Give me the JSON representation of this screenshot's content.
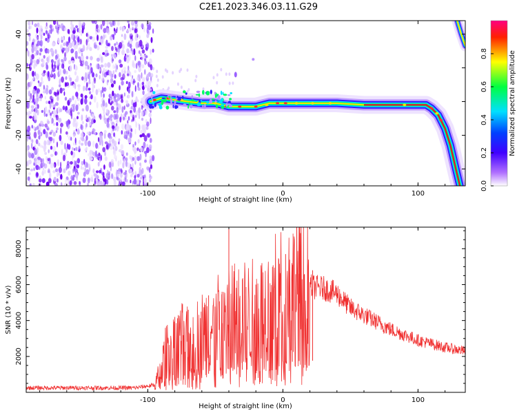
{
  "title": "C2E1.2023.346.03.11.G29",
  "chart_data": [
    {
      "type": "heatmap",
      "xlabel": "Height of straight line (km)",
      "ylabel": "Frequency (Hz)",
      "xlim": [
        -190,
        135
      ],
      "ylim": [
        -50,
        48
      ],
      "x_ticks": [
        -100,
        0,
        100
      ],
      "y_ticks": [
        -40,
        -20,
        0,
        20,
        40
      ],
      "x_tick_labels": [
        "-100",
        "0",
        "100"
      ],
      "y_tick_labels": [
        "-40",
        "-20",
        "0",
        "20",
        "40"
      ],
      "colorbar": {
        "label": "Normalized spectral amplitude",
        "range": [
          0,
          1
        ],
        "ticks": [
          0.0,
          0.2,
          0.4,
          0.6,
          0.8
        ],
        "tick_labels": [
          "0.0",
          "0.2",
          "0.4",
          "0.6",
          "0.8"
        ],
        "colormap": [
          "#ffffff",
          "#7b00ff",
          "#0000ff",
          "#00ffff",
          "#00ff00",
          "#ffff00",
          "#ff0000",
          "#ff00aa"
        ]
      },
      "ridge": [
        {
          "x": -98,
          "y": 0
        },
        {
          "x": -90,
          "y": 2
        },
        {
          "x": -80,
          "y": 1
        },
        {
          "x": -70,
          "y": 0
        },
        {
          "x": -60,
          "y": -1
        },
        {
          "x": -50,
          "y": -1
        },
        {
          "x": -40,
          "y": -3
        },
        {
          "x": -30,
          "y": -3
        },
        {
          "x": -20,
          "y": -3
        },
        {
          "x": -15,
          "y": -2
        },
        {
          "x": -10,
          "y": -1
        },
        {
          "x": 0,
          "y": -1
        },
        {
          "x": 10,
          "y": -1
        },
        {
          "x": 20,
          "y": -1
        },
        {
          "x": 40,
          "y": -1
        },
        {
          "x": 60,
          "y": -2
        },
        {
          "x": 80,
          "y": -2
        },
        {
          "x": 100,
          "y": -2
        },
        {
          "x": 106,
          "y": -2
        },
        {
          "x": 110,
          "y": -4
        },
        {
          "x": 115,
          "y": -8
        },
        {
          "x": 120,
          "y": -16
        },
        {
          "x": 124,
          "y": -26
        },
        {
          "x": 128,
          "y": -40
        },
        {
          "x": 131,
          "y": -50
        }
      ],
      "upper_branch": [
        {
          "x": 129,
          "y": 48
        },
        {
          "x": 132,
          "y": 40
        },
        {
          "x": 135,
          "y": 33
        }
      ]
    },
    {
      "type": "line",
      "xlabel": "Height of straight line (km)",
      "ylabel": "SNR (10 * v/v)",
      "xlim": [
        -190,
        135
      ],
      "ylim": [
        0,
        9200
      ],
      "x_ticks": [
        -100,
        0,
        100
      ],
      "y_ticks": [
        2000,
        4000,
        6000,
        8000
      ],
      "x_tick_labels": [
        "-100",
        "0",
        "100"
      ],
      "y_tick_labels": [
        "2000",
        "4000",
        "6000",
        "8000"
      ],
      "series": [
        {
          "color": "#f03030",
          "envelope": [
            {
              "x": -190,
              "y": 250
            },
            {
              "x": -150,
              "y": 250
            },
            {
              "x": -110,
              "y": 250
            },
            {
              "x": -95,
              "y": 400
            },
            {
              "x": -90,
              "y": 1300
            },
            {
              "x": -85,
              "y": 2600
            },
            {
              "x": -80,
              "y": 2500
            },
            {
              "x": -75,
              "y": 2900
            },
            {
              "x": -70,
              "y": 2700
            },
            {
              "x": -60,
              "y": 3300
            },
            {
              "x": -50,
              "y": 3600
            },
            {
              "x": -45,
              "y": 4100
            },
            {
              "x": -40,
              "y": 4300
            },
            {
              "x": -30,
              "y": 4200
            },
            {
              "x": -20,
              "y": 4300
            },
            {
              "x": -10,
              "y": 4800
            },
            {
              "x": 0,
              "y": 5400
            },
            {
              "x": 10,
              "y": 5800
            },
            {
              "x": 20,
              "y": 5900
            },
            {
              "x": 30,
              "y": 5800
            },
            {
              "x": 40,
              "y": 5500
            },
            {
              "x": 50,
              "y": 4700
            },
            {
              "x": 60,
              "y": 4300
            },
            {
              "x": 70,
              "y": 3900
            },
            {
              "x": 80,
              "y": 3500
            },
            {
              "x": 90,
              "y": 3200
            },
            {
              "x": 100,
              "y": 2900
            },
            {
              "x": 110,
              "y": 2700
            },
            {
              "x": 120,
              "y": 2500
            },
            {
              "x": 135,
              "y": 2300
            }
          ],
          "spikes": [
            {
              "x": -40,
              "y": 9200
            },
            {
              "x": -36,
              "y": 6400
            },
            {
              "x": -30,
              "y": 6300
            },
            {
              "x": -45,
              "y": 5600
            },
            {
              "x": -55,
              "y": 5400
            },
            {
              "x": 2,
              "y": 7700
            },
            {
              "x": 7,
              "y": 7100
            },
            {
              "x": 22,
              "y": 6800
            },
            {
              "x": 12,
              "y": 6600
            },
            {
              "x": -80,
              "y": 4200
            },
            {
              "x": -70,
              "y": 4600
            },
            {
              "x": -20,
              "y": 6000
            }
          ]
        }
      ]
    }
  ]
}
